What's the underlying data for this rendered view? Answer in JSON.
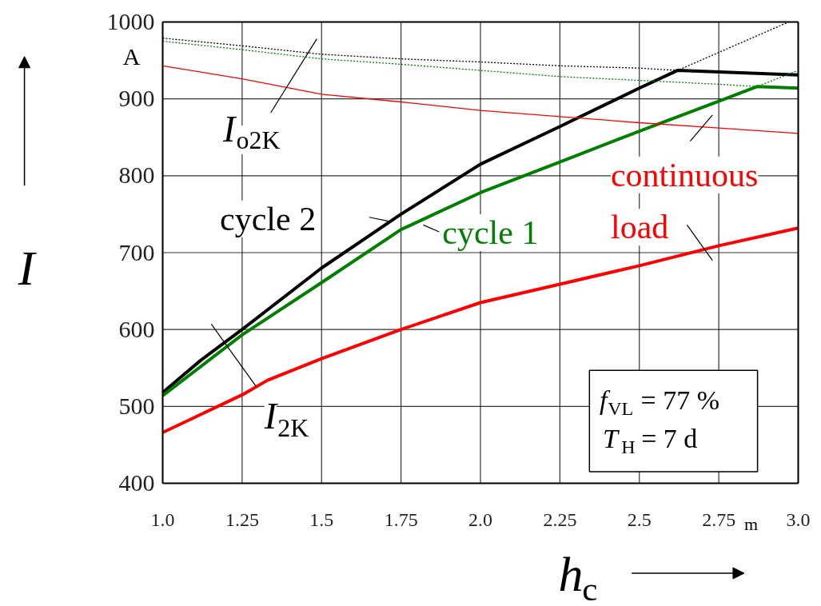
{
  "chart_data": {
    "type": "line",
    "xlabel": "h$_{c}$",
    "ylabel": "I",
    "xlim": [
      1.0,
      3.0
    ],
    "ylim": [
      400,
      1000
    ],
    "xticks": [
      {
        "value": 1.0,
        "label": "1.0"
      },
      1.25,
      1.5,
      1.75,
      {
        "value": 2.0,
        "label": "2.0"
      },
      2.25,
      2.5,
      2.75,
      {
        "value": 3.0,
        "label": "3.0"
      }
    ],
    "yticks": [
      400,
      500,
      600,
      700,
      800,
      900,
      1000
    ],
    "grid": true,
    "marker": "none",
    "series": [
      {
        "name": "cycle 2",
        "color": "#000000",
        "line_style": "solid",
        "x": [
          1.0,
          1.12,
          1.25,
          1.5,
          1.75,
          2.0,
          2.25,
          2.5,
          2.62,
          3.0
        ],
        "values": [
          518,
          560,
          600,
          680,
          750,
          815,
          864,
          914,
          937,
          931
        ]
      },
      {
        "name": "cycle 1",
        "color": "#008000",
        "line_style": "solid",
        "x": [
          1.0,
          1.25,
          1.5,
          1.75,
          2.0,
          2.25,
          2.5,
          2.75,
          2.87,
          3.0
        ],
        "values": [
          514,
          593,
          661,
          730,
          778,
          818,
          858,
          897,
          916,
          914
        ]
      },
      {
        "name": "continuous load",
        "color": "#ff0000",
        "line_style": "solid",
        "x": [
          1.0,
          1.25,
          1.33,
          1.5,
          1.75,
          2.0,
          2.25,
          2.5,
          2.75,
          3.0
        ],
        "values": [
          466,
          515,
          534,
          562,
          600,
          635,
          659,
          683,
          709,
          732
        ]
      },
      {
        "color": "#ff0000",
        "line_style": "solid",
        "x": [
          1.0,
          1.25,
          1.5,
          1.75,
          2.0,
          2.25,
          2.5,
          2.75,
          3.0
        ],
        "values": [
          943,
          926,
          906,
          896,
          885,
          877,
          869,
          862,
          855
        ]
      },
      {
        "color": "#000000",
        "line_style": "dotted",
        "x": [
          1.0,
          1.25,
          1.5,
          1.75,
          2.0,
          2.25,
          2.5,
          2.62,
          2.97
        ],
        "values": [
          979,
          969,
          958,
          952,
          948,
          943,
          940,
          937,
          1000
        ]
      },
      {
        "color": "#008000",
        "line_style": "dotted",
        "x": [
          1.0,
          1.25,
          1.5,
          1.75,
          2.0,
          2.25,
          2.5,
          2.75,
          2.87,
          3.0
        ],
        "values": [
          975,
          964,
          952,
          945,
          937,
          929,
          924,
          919,
          916,
          937
        ]
      }
    ],
    "annotations": [
      "A",
      "m",
      "I$_{o2K}$",
      "I$_{2K}$",
      "f$_{VL}$ = 77 %",
      "T$_{H}$ = 7 d"
    ]
  }
}
